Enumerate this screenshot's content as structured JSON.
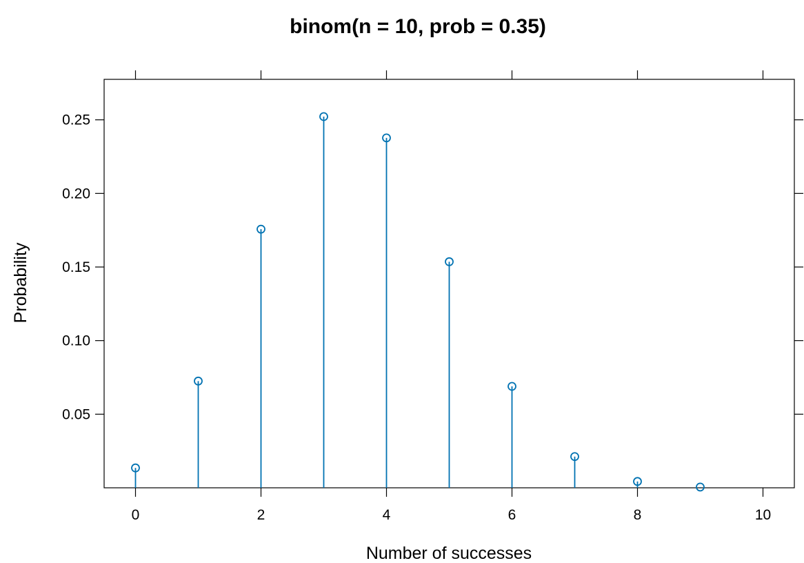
{
  "chart_data": {
    "type": "scatter",
    "style": "lollipop",
    "title": "binom(n = 10, prob = 0.35)",
    "xlabel": "Number of successes",
    "ylabel": "Probability",
    "x": [
      0,
      1,
      2,
      3,
      4,
      5,
      6,
      7,
      8,
      9,
      10
    ],
    "series": [
      {
        "values": [
          0.0135,
          0.0725,
          0.1757,
          0.2522,
          0.2377,
          0.1536,
          0.0689,
          0.0212,
          0.0043,
          0.0005,
          0.0
        ],
        "color": "#0080ff"
      }
    ],
    "xlim": [
      -0.5,
      10.5
    ],
    "ylim": [
      0,
      0.2775
    ],
    "x_ticks": [
      0,
      2,
      4,
      6,
      8,
      10
    ],
    "x_tick_labels": [
      "0",
      "2",
      "4",
      "6",
      "8",
      "10"
    ],
    "y_ticks": [
      0.05,
      0.1,
      0.15,
      0.2,
      0.25
    ],
    "y_tick_labels": [
      "0.05",
      "0.10",
      "0.15",
      "0.20",
      "0.25"
    ],
    "grid": false,
    "legend": "none"
  },
  "colors": {
    "series": "#0072b2",
    "axis": "#000000"
  }
}
